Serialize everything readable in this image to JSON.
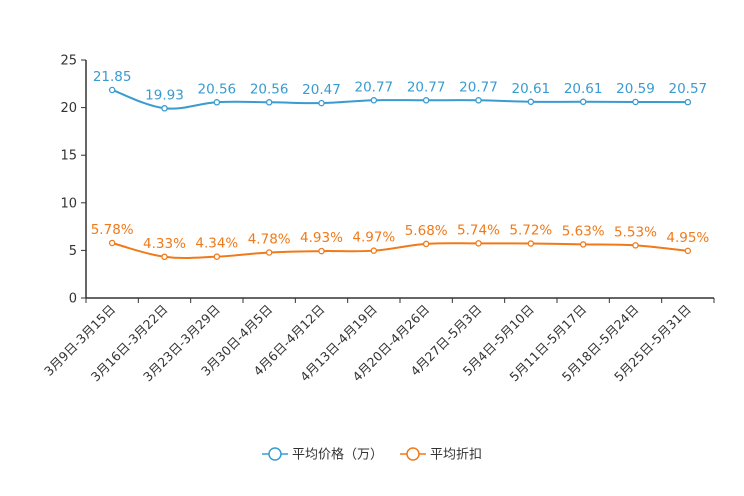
{
  "chart_data": {
    "type": "line",
    "title": "",
    "xlabel": "",
    "ylabel": "",
    "ylim": [
      0,
      25
    ],
    "yticks": [
      0,
      5,
      10,
      15,
      20,
      25
    ],
    "grid": false,
    "legend_position": "bottom-center",
    "categories": [
      "3月9日-3月15日",
      "3月16日-3月22日",
      "3月23日-3月29日",
      "3月30日-4月5日",
      "4月6日-4月12日",
      "4月13日-4月19日",
      "4月20日-4月26日",
      "4月27日-5月3日",
      "5月4日-5月10日",
      "5月11日-5月17日",
      "5月18日-5月24日",
      "5月25日-5月31日"
    ],
    "series": [
      {
        "name": "平均价格（万）",
        "color": "#3a9bd0",
        "values": [
          21.85,
          19.93,
          20.56,
          20.56,
          20.47,
          20.77,
          20.77,
          20.77,
          20.61,
          20.61,
          20.59,
          20.57
        ],
        "labels": [
          "21.85",
          "19.93",
          "20.56",
          "20.56",
          "20.47",
          "20.77",
          "20.77",
          "20.77",
          "20.61",
          "20.61",
          "20.59",
          "20.57"
        ]
      },
      {
        "name": "平均折扣",
        "color": "#f07a1a",
        "values": [
          5.78,
          4.33,
          4.34,
          4.78,
          4.93,
          4.97,
          5.68,
          5.74,
          5.72,
          5.63,
          5.53,
          4.95
        ],
        "labels": [
          "5.78%",
          "4.33%",
          "4.34%",
          "4.78%",
          "4.93%",
          "4.97%",
          "5.68%",
          "5.74%",
          "5.72%",
          "5.63%",
          "5.53%",
          "4.95%"
        ]
      }
    ]
  }
}
